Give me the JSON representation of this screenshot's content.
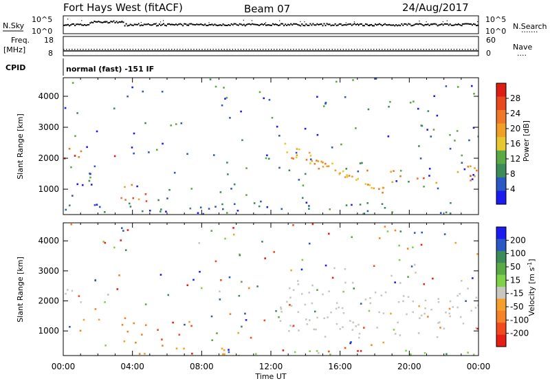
{
  "header": {
    "radar": "Fort Hays West (fitACF)",
    "beam": "Beam 07",
    "date": "24/Aug/2017"
  },
  "top_panels": {
    "nsky_label": "N.Sky",
    "nsky_ticks": [
      "10^5",
      "10^0"
    ],
    "nsearch_label": "N.Search",
    "nsearch_ticks": [
      "10^5",
      "10^0"
    ],
    "freq_label_1": "Freq.",
    "freq_label_2": "[MHz]",
    "freq_ticks": [
      "18",
      "8"
    ],
    "nave_label": "Nave",
    "nave_ticks": [
      "60",
      "0"
    ],
    "cpid_label": "CPID",
    "cpid_text": "normal (fast) -151 IF"
  },
  "colors": {
    "power_scale": [
      "#1c1cf0",
      "#2a58c4",
      "#3c8c5a",
      "#5aaa46",
      "#e8c832",
      "#f0a028",
      "#f07828",
      "#e84a1e",
      "#dc1e14"
    ],
    "velocity_scale": [
      "#e61e14",
      "#f04a1e",
      "#f58226",
      "#f5a02c",
      "#c8c8c0",
      "#7ed24a",
      "#5aaa46",
      "#3c8c5a",
      "#2a58c4",
      "#1c1cf0"
    ],
    "ground_scatter": "#c8c8c0"
  },
  "chart_data": [
    {
      "type": "heatmap",
      "title": "Power",
      "ylabel": "Slant Range [km]",
      "xlabel": "",
      "ylim": [
        180,
        4600
      ],
      "xlim": [
        0,
        24
      ],
      "y_ticks": [
        "1000",
        "2000",
        "3000",
        "4000"
      ],
      "x_ticks": [
        "00:00",
        "04:00",
        "08:00",
        "12:00",
        "16:00",
        "20:00",
        "00:00"
      ],
      "colorbar": {
        "label": "Power [dB]",
        "range": [
          0,
          30
        ],
        "ticks": [
          "4",
          "8",
          "12",
          "16",
          "20",
          "24",
          "28"
        ]
      },
      "features": [
        {
          "hours": [
            0,
            3.2
          ],
          "range_km": [
            2000,
            2400
          ],
          "power_db": 24
        },
        {
          "hours": [
            2.8,
            4.9
          ],
          "range_km": [
            600,
            1400
          ],
          "power_db": 22
        },
        {
          "hours": [
            5.2,
            5.6
          ],
          "range_km": [
            950,
            1200
          ],
          "power_db": 18
        },
        {
          "hours": [
            12.5,
            18.5
          ],
          "range_km": [
            800,
            2700
          ],
          "power_db": 18
        },
        {
          "hours": [
            17.5,
            24
          ],
          "range_km": [
            1200,
            1800
          ],
          "power_db": 20
        },
        {
          "hours": [
            0,
            24
          ],
          "range_km": [
            180,
            600
          ],
          "power_db": 6
        }
      ]
    },
    {
      "type": "heatmap",
      "title": "Velocity",
      "ylabel": "Slant Range [km]",
      "xlabel": "Time UT",
      "ylim": [
        180,
        4600
      ],
      "xlim": [
        0,
        24
      ],
      "y_ticks": [
        "1000",
        "2000",
        "3000",
        "4000"
      ],
      "x_ticks": [
        "00:00",
        "04:00",
        "08:00",
        "12:00",
        "16:00",
        "20:00",
        "00:00"
      ],
      "colorbar": {
        "label": "Velocity [m s^-1]",
        "range": [
          -250,
          250
        ],
        "ticks": [
          "200",
          "100",
          "50",
          "15",
          "-15",
          "-50",
          "-100",
          "-200"
        ]
      },
      "features": [
        {
          "hours": [
            0,
            3.2
          ],
          "range_km": [
            2000,
            2400
          ],
          "velocity": 0
        },
        {
          "hours": [
            3.2,
            4.9
          ],
          "range_km": [
            600,
            1500
          ],
          "velocity": -80
        },
        {
          "hours": [
            5.2,
            5.6
          ],
          "range_km": [
            950,
            1200
          ],
          "velocity": -120
        },
        {
          "hours": [
            12.5,
            24
          ],
          "range_km": [
            800,
            2700
          ],
          "velocity": 0
        },
        {
          "hours": [
            4,
            10.5
          ],
          "range_km": [
            180,
            450
          ],
          "velocity": -30
        },
        {
          "hours": [
            10.5,
            24
          ],
          "range_km": [
            180,
            450
          ],
          "velocity": 25
        }
      ]
    }
  ]
}
